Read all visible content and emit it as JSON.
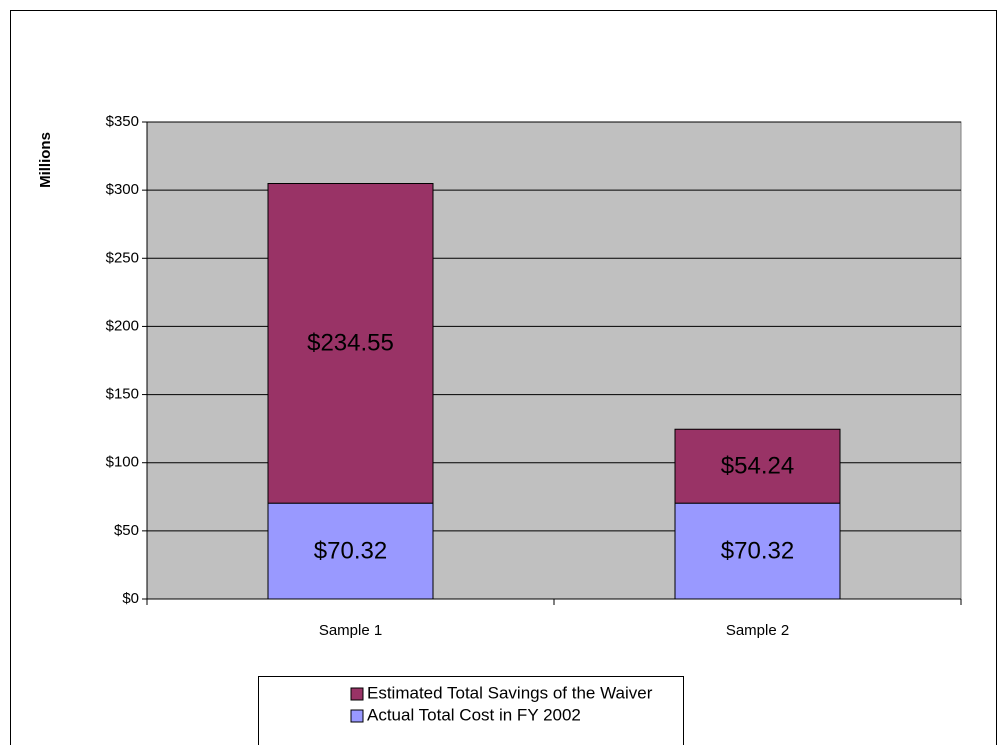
{
  "chart_data": {
    "type": "stacked_bar",
    "y_label": "Millions",
    "categories": [
      "Sample 1",
      "Sample 2"
    ],
    "series": [
      {
        "name": "Actual Total Cost in FY 2002",
        "color": "#9999ff",
        "values": [
          70.32,
          70.32
        ],
        "value_labels": [
          "$70.32",
          "$70.32"
        ]
      },
      {
        "name": "Estimated Total Savings of the Waiver",
        "color": "#993366",
        "values": [
          234.55,
          54.24
        ],
        "value_labels": [
          "$234.55",
          "$54.24"
        ]
      }
    ],
    "ylim": [
      0,
      350
    ],
    "yticks": [
      {
        "value": 0,
        "label": "$0"
      },
      {
        "value": 50,
        "label": "$50"
      },
      {
        "value": 100,
        "label": "$100"
      },
      {
        "value": 150,
        "label": "$150"
      },
      {
        "value": 200,
        "label": "$200"
      },
      {
        "value": 250,
        "label": "$250"
      },
      {
        "value": 300,
        "label": "$300"
      },
      {
        "value": 350,
        "label": "$350"
      }
    ],
    "grid": true,
    "legend_position": "bottom"
  }
}
